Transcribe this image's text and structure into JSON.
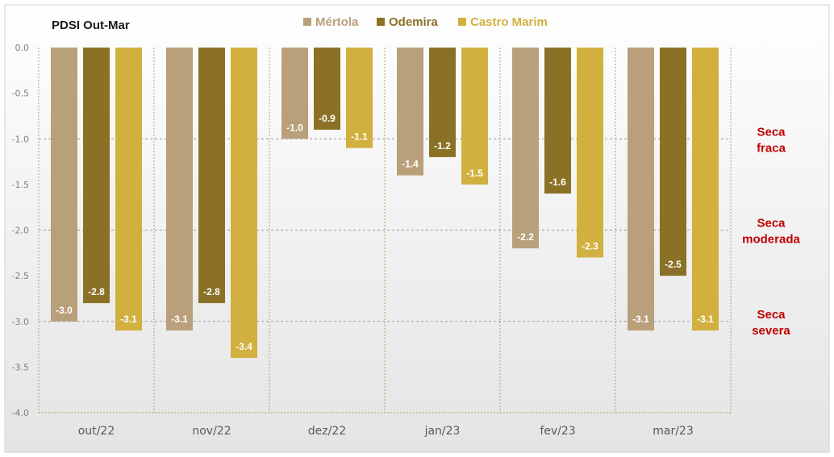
{
  "chart_data": {
    "type": "bar",
    "title": "PDSI Out-Mar",
    "categories": [
      "out/22",
      "nov/22",
      "dez/22",
      "jan/23",
      "fev/23",
      "mar/23"
    ],
    "series": [
      {
        "name": "Mértola",
        "color": "#b9a07a",
        "values": [
          -3.0,
          -3.1,
          -1.0,
          -1.4,
          -2.2,
          -3.1
        ],
        "labels": [
          "-3.0",
          "-3.1",
          "-1.0",
          "-1.4",
          "-2.2",
          "-3.1"
        ]
      },
      {
        "name": "Odemira",
        "color": "#8a7126",
        "values": [
          -2.8,
          -2.8,
          -0.9,
          -1.2,
          -1.6,
          -2.5
        ],
        "labels": [
          "-2.8",
          "-2.8",
          "-0.9",
          "-1.2",
          "-1.6",
          "-2.5"
        ]
      },
      {
        "name": "Castro Marim",
        "color": "#d2b03f",
        "values": [
          -3.1,
          -3.4,
          -1.1,
          -1.5,
          -2.3,
          -3.1
        ],
        "labels": [
          "-3.1",
          "-3.4",
          "-1.1",
          "-1.5",
          "-2.3",
          "-3.1"
        ]
      }
    ],
    "ylim": [
      -4.0,
      0.0
    ],
    "yticks": [
      0.0,
      -0.5,
      -1.0,
      -1.5,
      -2.0,
      -2.5,
      -3.0,
      -3.5,
      -4.0
    ],
    "ytick_labels": [
      "0.0",
      "-0.5",
      "-1.0",
      "-1.5",
      "-2.0",
      "-2.5",
      "-3.0",
      "-3.5",
      "-4.0"
    ],
    "xlabel": "",
    "ylabel": "",
    "legend_position": "top",
    "reference_lines": [
      {
        "value": -1.0,
        "label_lines": [
          "Seca",
          "fraca"
        ]
      },
      {
        "value": -2.0,
        "label_lines": [
          "Seca",
          "moderada"
        ]
      },
      {
        "value": -3.0,
        "label_lines": [
          "Seca",
          "severa"
        ]
      }
    ],
    "annotation_color": "#c00000"
  }
}
